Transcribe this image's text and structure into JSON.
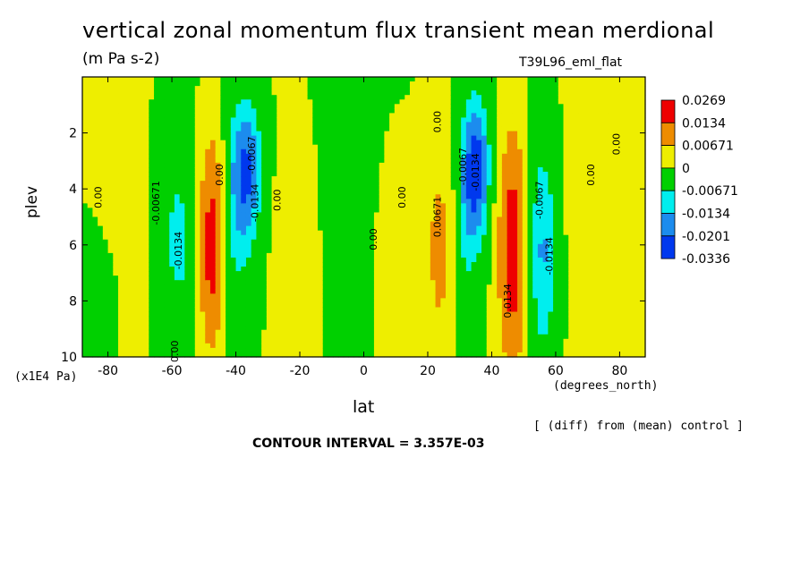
{
  "chart_data": {
    "type": "heatmap",
    "title": "vertical zonal momentum flux transient mean merdional",
    "units": "(m Pa s-2)",
    "run_name": "T39L96_eml_flat",
    "xlabel": "lat",
    "xunits": "(degrees_north)",
    "ylabel": "plev",
    "yunits": "(x1E4 Pa)",
    "note": "[ (diff) from (mean) control ]",
    "contour_interval": "CONTOUR INTERVAL = 3.357E-03",
    "xlim": [
      -88,
      88
    ],
    "ylim": [
      10,
      0
    ],
    "xticks": [
      "-80",
      "-60",
      "-40",
      "-20",
      "0",
      "20",
      "40",
      "60",
      "80"
    ],
    "xtick_values": [
      -80,
      -60,
      -40,
      -20,
      0,
      20,
      40,
      60,
      80
    ],
    "yticks": [
      "2",
      "4",
      "6",
      "8",
      "10"
    ],
    "ytick_values": [
      2,
      4,
      6,
      8,
      10
    ],
    "legend": {
      "placement": "right",
      "colors": [
        "#ee0000",
        "#ee8c00",
        "#eeee00",
        "#00d000",
        "#00eeee",
        "#1c8cee",
        "#0038ee"
      ],
      "labels": [
        "0.0269",
        "0.0134",
        "0.00671",
        "0",
        "-0.00671",
        "-0.0134",
        "-0.0201",
        "-0.0336"
      ]
    },
    "contour_labels": [
      {
        "text": "0.00",
        "x": -82,
        "y": 4.3
      },
      {
        "text": "-0.00671",
        "x": -64,
        "y": 4.5
      },
      {
        "text": "-0.0134",
        "x": -57,
        "y": 6.2
      },
      {
        "text": "0.00",
        "x": -58,
        "y": 9.8
      },
      {
        "text": "-0.0067",
        "x": -34,
        "y": 2.8
      },
      {
        "text": "-0.0134",
        "x": -33,
        "y": 4.5
      },
      {
        "text": "0.00",
        "x": -44,
        "y": 3.5
      },
      {
        "text": "0.00",
        "x": -26,
        "y": 4.4
      },
      {
        "text": "0.00",
        "x": 4,
        "y": 5.8
      },
      {
        "text": "0.00",
        "x": 13,
        "y": 4.3
      },
      {
        "text": "0.00671",
        "x": 24,
        "y": 5.0
      },
      {
        "text": "0.00",
        "x": 24,
        "y": 1.6
      },
      {
        "text": "-0.0067",
        "x": 32,
        "y": 3.2
      },
      {
        "text": "-0.0134",
        "x": 36,
        "y": 3.4
      },
      {
        "text": "0.0134",
        "x": 46,
        "y": 8.0
      },
      {
        "text": "-0.0067",
        "x": 56,
        "y": 4.4
      },
      {
        "text": "-0.0134",
        "x": 59,
        "y": 6.4
      },
      {
        "text": "0.00",
        "x": 72,
        "y": 3.5
      },
      {
        "text": "0.00",
        "x": 80,
        "y": 2.4
      }
    ],
    "features": [
      {
        "lat": -82,
        "amp": -0.6,
        "sx": 3,
        "y0": 8.6,
        "sy": 1.2
      },
      {
        "lat": -73,
        "amp": 0.22,
        "sx": 4,
        "y0": 5,
        "sy": 4
      },
      {
        "lat": -58,
        "amp": -1.0,
        "sx": 4.5,
        "y0": 5.8,
        "sy": 2.7
      },
      {
        "lat": -47.5,
        "amp": 3.6,
        "sx": 2.6,
        "y0": 6.1,
        "sy": 2.5
      },
      {
        "lat": -37,
        "amp": -2.1,
        "sx": 3.8,
        "y0": 3.3,
        "sy": 1.9
      },
      {
        "lat": -42,
        "amp": -0.7,
        "sx": 5,
        "y0": 7.0,
        "sy": 2.5
      },
      {
        "lat": -21,
        "amp": 0.35,
        "sx": 6,
        "y0": 6,
        "sy": 3.5
      },
      {
        "lat": -4,
        "amp": -0.3,
        "sx": 9,
        "y0": 4,
        "sy": 5
      },
      {
        "lat": 7,
        "amp": 0.25,
        "sx": 5,
        "y0": 6,
        "sy": 3.5
      },
      {
        "lat": 24,
        "amp": 1.35,
        "sx": 3.6,
        "y0": 6.2,
        "sy": 2.8
      },
      {
        "lat": 31,
        "amp": -0.75,
        "sx": 3,
        "y0": 6.5,
        "sy": 3.2
      },
      {
        "lat": 35,
        "amp": -2.3,
        "sx": 3.2,
        "y0": 3.3,
        "sy": 1.9
      },
      {
        "lat": 46.5,
        "amp": 3.6,
        "sx": 2.8,
        "y0": 6.2,
        "sy": 2.7
      },
      {
        "lat": 56,
        "amp": -1.5,
        "sx": 3.4,
        "y0": 6.2,
        "sy": 2.9
      },
      {
        "lat": 68,
        "amp": 0.22,
        "sx": 6,
        "y0": 5,
        "sy": 4
      },
      {
        "lat": 84,
        "amp": 0.3,
        "sx": 4,
        "y0": 3,
        "sy": 3
      }
    ]
  }
}
